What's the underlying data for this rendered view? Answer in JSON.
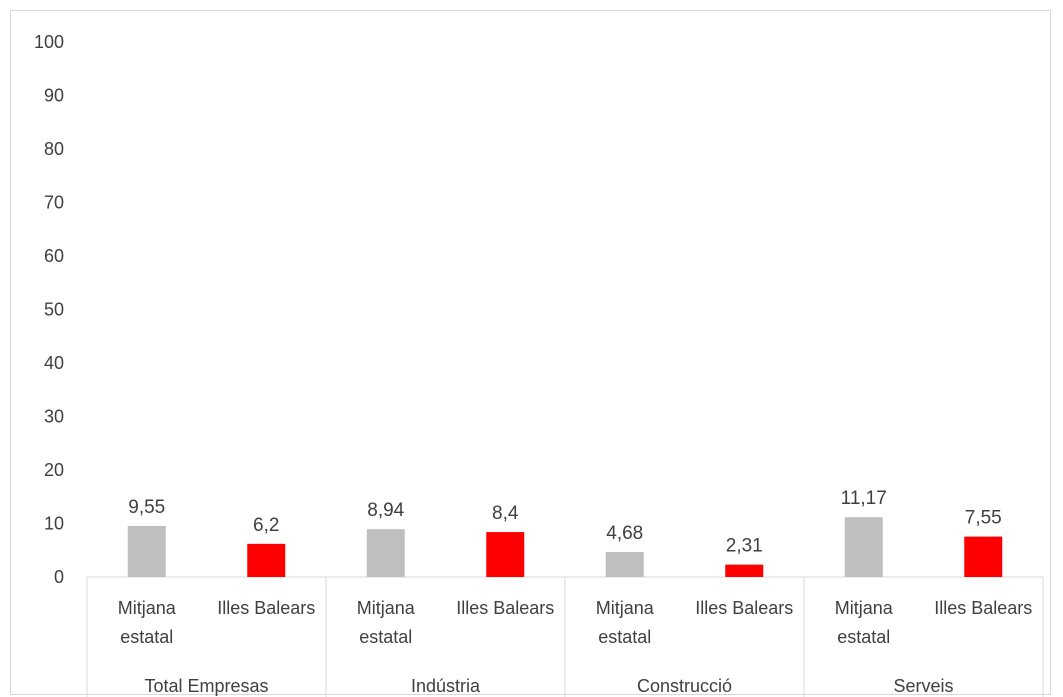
{
  "chart_data": {
    "type": "bar",
    "title": "",
    "xlabel": "",
    "ylabel": "",
    "ylim": [
      0,
      100
    ],
    "yticks": [
      "0",
      "10",
      "20",
      "30",
      "40",
      "50",
      "60",
      "70",
      "80",
      "90",
      "100"
    ],
    "grid": false,
    "legend": "none",
    "groups": [
      {
        "name": "Total Empresas",
        "bars": [
          {
            "category": "Mitjana estatal",
            "category_lines": [
              "Mitjana",
              "estatal"
            ],
            "value": 9.55,
            "label": "9,55",
            "color": "#bfbfbf"
          },
          {
            "category": "Illes Balears",
            "category_lines": [
              "Illes Balears"
            ],
            "value": 6.2,
            "label": "6,2",
            "color": "#ff0000"
          }
        ]
      },
      {
        "name": "Indústria",
        "bars": [
          {
            "category": "Mitjana estatal",
            "category_lines": [
              "Mitjana",
              "estatal"
            ],
            "value": 8.94,
            "label": "8,94",
            "color": "#bfbfbf"
          },
          {
            "category": "Illes Balears",
            "category_lines": [
              "Illes Balears"
            ],
            "value": 8.4,
            "label": "8,4",
            "color": "#ff0000"
          }
        ]
      },
      {
        "name": "Construcció",
        "bars": [
          {
            "category": "Mitjana estatal",
            "category_lines": [
              "Mitjana",
              "estatal"
            ],
            "value": 4.68,
            "label": "4,68",
            "color": "#bfbfbf"
          },
          {
            "category": "Illes Balears",
            "category_lines": [
              "Illes Balears"
            ],
            "value": 2.31,
            "label": "2,31",
            "color": "#ff0000"
          }
        ]
      },
      {
        "name": "Serveis",
        "bars": [
          {
            "category": "Mitjana estatal",
            "category_lines": [
              "Mitjana",
              "estatal"
            ],
            "value": 11.17,
            "label": "11,17",
            "color": "#bfbfbf"
          },
          {
            "category": "Illes Balears",
            "category_lines": [
              "Illes Balears"
            ],
            "value": 7.55,
            "label": "7,55",
            "color": "#ff0000"
          }
        ]
      }
    ]
  }
}
